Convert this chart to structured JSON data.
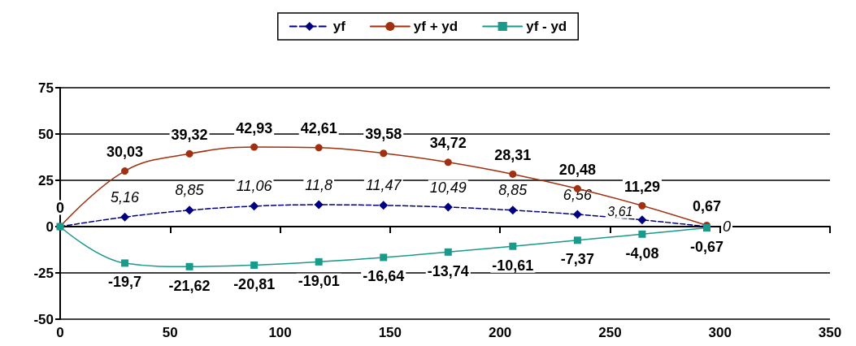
{
  "chart_data": {
    "type": "line",
    "x": [
      0,
      29.4,
      58.8,
      88.2,
      117.6,
      147,
      176.4,
      205.8,
      235.2,
      264.6,
      294
    ],
    "series": [
      {
        "name": "yf",
        "color": "#000080",
        "marker": "diamond",
        "line_style": "dashed",
        "values": [
          0,
          5.16,
          8.85,
          11.06,
          11.8,
          11.47,
          10.49,
          8.85,
          6.56,
          3.61,
          0
        ],
        "value_labels": [
          null,
          "5,16",
          "8,85",
          "11,06",
          "11,8",
          "11,47",
          "10,49",
          "8,85",
          "6,56",
          "3,61",
          "0"
        ]
      },
      {
        "name": "yf + yd",
        "color": "#a0300f",
        "marker": "circle",
        "line_style": "solid",
        "values": [
          0,
          30.03,
          39.32,
          42.93,
          42.61,
          39.58,
          34.72,
          28.31,
          20.48,
          11.29,
          0.67
        ],
        "value_labels": [
          "0",
          "30,03",
          "39,32",
          "42,93",
          "42,61",
          "39,58",
          "34,72",
          "28,31",
          "20,48",
          "11,29",
          "0,67"
        ]
      },
      {
        "name": "yf - yd",
        "color": "#1a9a8a",
        "marker": "square",
        "line_style": "solid",
        "values": [
          0,
          -19.7,
          -21.62,
          -20.81,
          -19.01,
          -16.64,
          -13.74,
          -10.61,
          -7.37,
          -4.08,
          -0.67
        ],
        "value_labels": [
          null,
          "-19,7",
          "-21,62",
          "-20,81",
          "-19,01",
          "-16,64",
          "-13,74",
          "-10,61",
          "-7,37",
          "-4,08",
          "-0,67"
        ]
      }
    ],
    "xlim": [
      0,
      350
    ],
    "xticks": [
      0,
      50,
      100,
      150,
      200,
      250,
      300,
      350
    ],
    "ylim": [
      -50,
      75
    ],
    "yticks": [
      -50,
      -25,
      0,
      25,
      50,
      75
    ],
    "grid": "y",
    "legend": "top"
  }
}
